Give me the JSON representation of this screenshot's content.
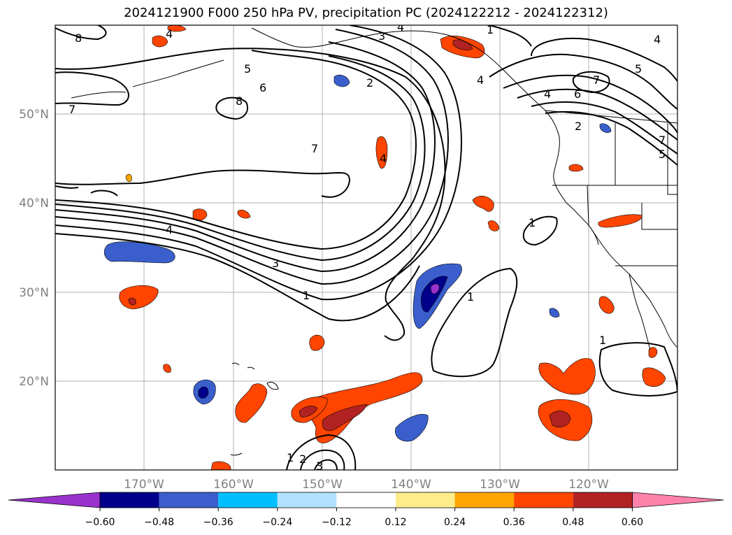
{
  "title": "2024121900 F000 250 hPa PV, precipitation PC (2024122212 - 2024122312)",
  "map": {
    "lon_range": [
      -180,
      -110
    ],
    "lat_range": [
      10,
      60
    ],
    "x_ticks": [
      "170°W",
      "160°W",
      "150°W",
      "140°W",
      "130°W",
      "120°W"
    ],
    "y_ticks": [
      "50°N",
      "40°N",
      "30°N",
      "20°N"
    ],
    "grid": true
  },
  "pv_contour_labels": [
    "8",
    "7",
    "6",
    "5",
    "4",
    "3",
    "2",
    "1"
  ],
  "colorbar": {
    "ticks": [
      "−0.60",
      "−0.48",
      "−0.36",
      "−0.24",
      "−0.12",
      "0.12",
      "0.24",
      "0.36",
      "0.48",
      "0.60"
    ],
    "colors": [
      "#9932cc",
      "#00008b",
      "#3a5fcd",
      "#00bfff",
      "#b0e2ff",
      "#ffffff",
      "#ffec8b",
      "#ffa500",
      "#ff4500",
      "#b22222",
      "#ff82ab"
    ]
  }
}
